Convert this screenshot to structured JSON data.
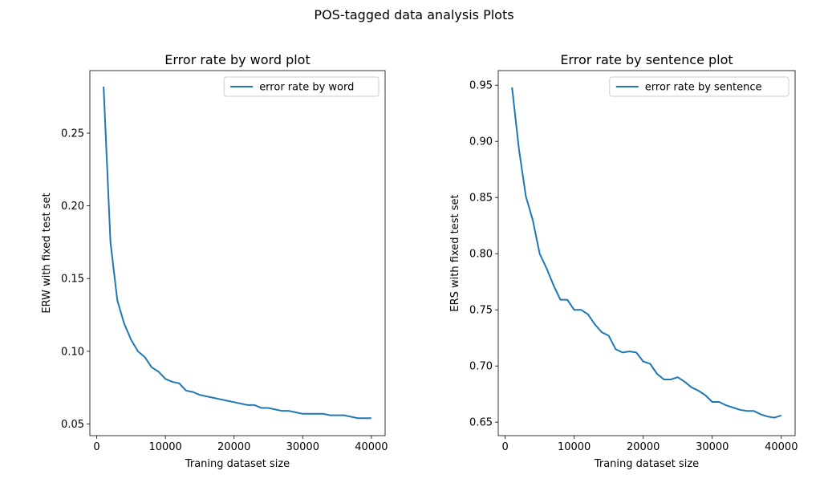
{
  "figure": {
    "suptitle": "POS-tagged data analysis Plots"
  },
  "chart_data": [
    {
      "type": "line",
      "title": "Error rate by word plot",
      "xlabel": "Traning dataset size",
      "ylabel": "ERW with fixed test set",
      "xlim": [
        -1000,
        42000
      ],
      "ylim": [
        0.042,
        0.293
      ],
      "xticks": [
        0,
        10000,
        20000,
        30000,
        40000
      ],
      "yticks": [
        0.05,
        0.1,
        0.15,
        0.2,
        0.25
      ],
      "ytick_labels": [
        "0.05",
        "0.10",
        "0.15",
        "0.20",
        "0.25"
      ],
      "legend_position": "top-right",
      "grid": false,
      "series": [
        {
          "name": "error rate by word",
          "color": "#1f77b4",
          "x": [
            1000,
            2000,
            3000,
            4000,
            5000,
            6000,
            7000,
            8000,
            9000,
            10000,
            11000,
            12000,
            13000,
            14000,
            15000,
            16000,
            17000,
            18000,
            19000,
            20000,
            21000,
            22000,
            23000,
            24000,
            25000,
            26000,
            27000,
            28000,
            29000,
            30000,
            31000,
            32000,
            33000,
            34000,
            35000,
            36000,
            37000,
            38000,
            39000,
            40000
          ],
          "y": [
            0.282,
            0.175,
            0.135,
            0.119,
            0.108,
            0.1,
            0.096,
            0.089,
            0.086,
            0.081,
            0.079,
            0.078,
            0.073,
            0.072,
            0.07,
            0.069,
            0.068,
            0.067,
            0.066,
            0.065,
            0.064,
            0.063,
            0.063,
            0.061,
            0.061,
            0.06,
            0.059,
            0.059,
            0.058,
            0.057,
            0.057,
            0.057,
            0.057,
            0.056,
            0.056,
            0.056,
            0.055,
            0.054,
            0.054,
            0.054
          ]
        }
      ]
    },
    {
      "type": "line",
      "title": "Error rate by sentence plot",
      "xlabel": "Traning dataset size",
      "ylabel": "ERS with fixed test set",
      "xlim": [
        -1000,
        42000
      ],
      "ylim": [
        0.638,
        0.963
      ],
      "xticks": [
        0,
        10000,
        20000,
        30000,
        40000
      ],
      "yticks": [
        0.65,
        0.7,
        0.75,
        0.8,
        0.85,
        0.9,
        0.95
      ],
      "ytick_labels": [
        "0.65",
        "0.70",
        "0.75",
        "0.80",
        "0.85",
        "0.90",
        "0.95"
      ],
      "legend_position": "top-right",
      "grid": false,
      "series": [
        {
          "name": "error rate by sentence",
          "color": "#1f77b4",
          "x": [
            1000,
            2000,
            3000,
            4000,
            5000,
            6000,
            7000,
            8000,
            9000,
            10000,
            11000,
            12000,
            13000,
            14000,
            15000,
            16000,
            17000,
            18000,
            19000,
            20000,
            21000,
            22000,
            23000,
            24000,
            25000,
            26000,
            27000,
            28000,
            29000,
            30000,
            31000,
            32000,
            33000,
            34000,
            35000,
            36000,
            37000,
            38000,
            39000,
            40000
          ],
          "y": [
            0.948,
            0.893,
            0.851,
            0.83,
            0.8,
            0.787,
            0.772,
            0.759,
            0.759,
            0.75,
            0.75,
            0.746,
            0.737,
            0.73,
            0.727,
            0.715,
            0.712,
            0.713,
            0.712,
            0.704,
            0.702,
            0.693,
            0.688,
            0.688,
            0.69,
            0.686,
            0.681,
            0.678,
            0.674,
            0.668,
            0.668,
            0.665,
            0.663,
            0.661,
            0.66,
            0.66,
            0.657,
            0.655,
            0.654,
            0.656
          ]
        }
      ]
    }
  ]
}
